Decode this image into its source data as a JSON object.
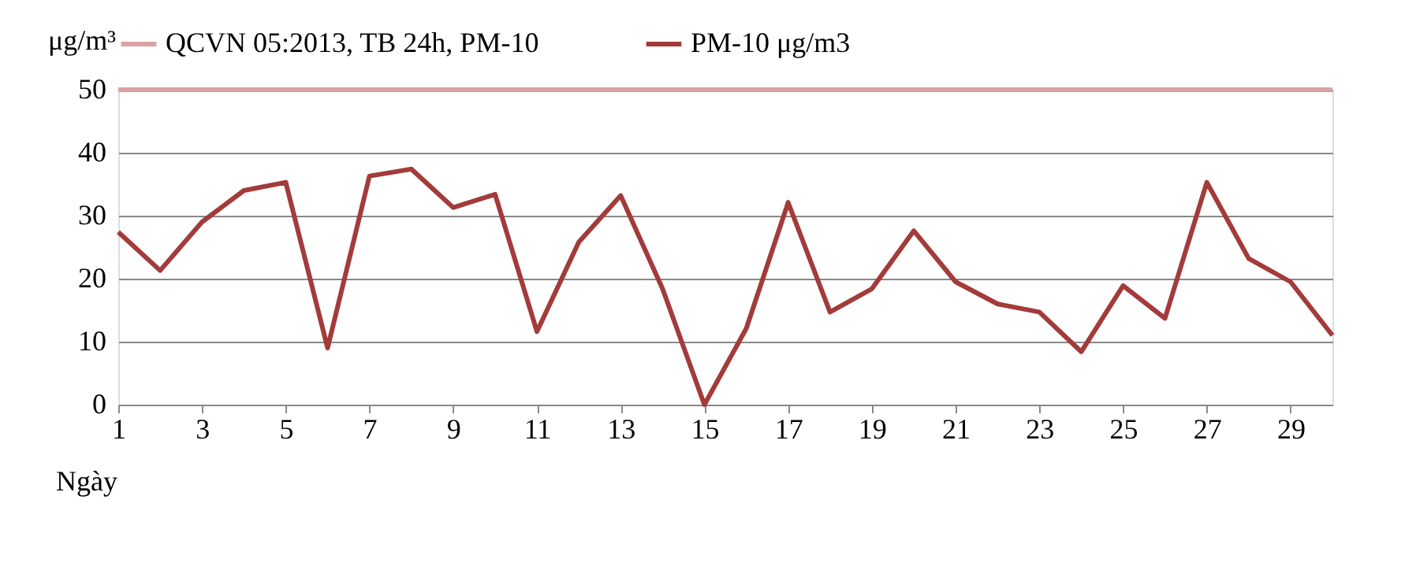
{
  "chart_data": {
    "type": "line",
    "ylabel": "μg/m³",
    "xlabel": "Ngày",
    "x": [
      1,
      2,
      3,
      4,
      5,
      6,
      7,
      8,
      9,
      10,
      11,
      12,
      13,
      14,
      15,
      16,
      17,
      18,
      19,
      20,
      21,
      22,
      23,
      24,
      25,
      26,
      27,
      28,
      29,
      30
    ],
    "series": [
      {
        "name": "QCVN 05:2013, TB 24h, PM-10",
        "color": "#d9a3a3",
        "x": [
          1,
          30
        ],
        "values": [
          50,
          50
        ]
      },
      {
        "name": "PM-10 μg/m3",
        "color": "#a33b3b",
        "values": [
          27.4,
          21.3,
          29,
          34,
          35.3,
          9,
          36.3,
          37.4,
          31.3,
          33.4,
          11.6,
          25.8,
          33.2,
          18.4,
          0,
          12.1,
          32.1,
          14.7,
          18.4,
          27.6,
          19.5,
          16,
          14.7,
          8.4,
          18.9,
          13.7,
          35.3,
          23.2,
          19.5,
          11
        ]
      }
    ],
    "xlim": [
      1,
      30
    ],
    "xticks": [
      1,
      3,
      5,
      7,
      9,
      11,
      13,
      15,
      17,
      19,
      21,
      23,
      25,
      27,
      29
    ],
    "ylim": [
      0,
      50
    ],
    "yticks": [
      0,
      10,
      20,
      30,
      40,
      50
    ],
    "grid": "y",
    "legend": "top",
    "marker": "none",
    "line_style": "solid"
  }
}
